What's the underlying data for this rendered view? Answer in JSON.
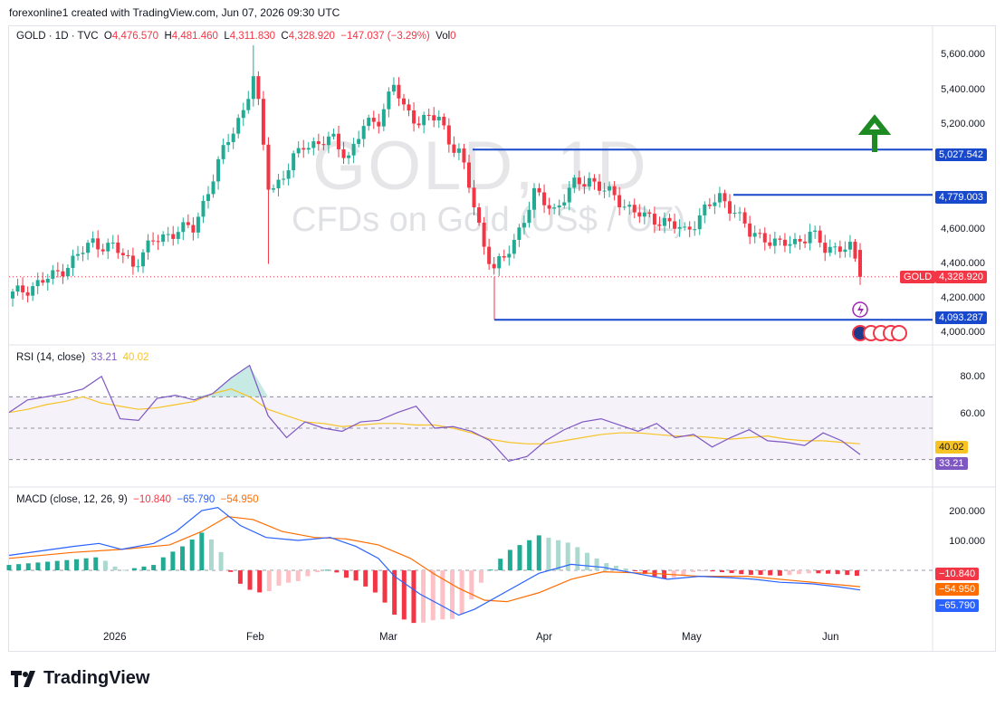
{
  "header": "forexonline1 created with TradingView.com, Jun 07, 2026 09:30 UTC",
  "symbol_line": {
    "symbol": "GOLD · 1D · TVC",
    "o_label": "O",
    "o": "4,476.570",
    "h_label": "H",
    "h": "4,481.460",
    "l_label": "L",
    "l": "4,311.830",
    "c_label": "C",
    "c": "4,328.920",
    "change": "−147.037 (−3.29%)",
    "vol_label": "Vol",
    "vol": "0"
  },
  "watermark": {
    "title": "GOLD, 1D",
    "subtitle": "CFDs on Gold (US$ / OZ)"
  },
  "rsi_label": {
    "name": "RSI (14, close)",
    "rsi": "33.21",
    "ma": "40.02"
  },
  "macd_label": {
    "name": "MACD (close, 12, 26, 9)",
    "hist": "−10.840",
    "macd": "−65.790",
    "signal": "−54.950"
  },
  "price_axis": [
    "5,600.000",
    "5,400.000",
    "5,200.000",
    "4,600.000",
    "4,400.000",
    "4,200.000",
    "4,000.000"
  ],
  "rsi_axis": [
    "80.00",
    "60.00"
  ],
  "macd_axis": [
    "200.000",
    "100.000"
  ],
  "tags": {
    "level1": "5,027.542",
    "level2": "4,779.003",
    "gold_name": "GOLD",
    "gold_price": "4,328.920",
    "level3": "4,093.287",
    "rsi_ma": "40.02",
    "rsi_val": "33.21",
    "macd_hist": "−10.840",
    "macd_signal": "−54.950",
    "macd_val": "−65.790"
  },
  "x_axis": [
    "2026",
    "Feb",
    "Mar",
    "Apr",
    "May",
    "Jun"
  ],
  "footer": "TradingView",
  "colors": {
    "up": "#22ab94",
    "down": "#f23645",
    "level": "#1848cc",
    "rsi": "#7e57c2",
    "rsi_ma": "#f7c325",
    "macd": "#2962ff",
    "signal": "#ff6d00",
    "arrow": "#1e8a23"
  },
  "chart_data": [
    {
      "type": "candlestick",
      "title": "GOLD · 1D · TVC",
      "x_labels": [
        "2026",
        "Feb",
        "Mar",
        "Apr",
        "May",
        "Jun"
      ],
      "y_ticks": [
        4000,
        4200,
        4400,
        4600,
        5200,
        5400,
        5600
      ],
      "ylim": [
        3970,
        5650
      ],
      "horizontal_levels": [
        5027.542,
        4779.003,
        4093.287
      ],
      "last_price": 4328.92,
      "approx_close_path": [
        [
          0,
          4230
        ],
        [
          8,
          4330
        ],
        [
          12,
          4420
        ],
        [
          16,
          4520
        ],
        [
          20,
          4490
        ],
        [
          24,
          4400
        ],
        [
          28,
          4520
        ],
        [
          33,
          4590
        ],
        [
          36,
          4590
        ],
        [
          40,
          4880
        ],
        [
          43,
          5080
        ],
        [
          46,
          5250
        ],
        [
          48,
          5420
        ],
        [
          49,
          5260
        ],
        [
          51,
          4840
        ],
        [
          52,
          4820
        ],
        [
          55,
          4920
        ],
        [
          58,
          5060
        ],
        [
          61,
          5060
        ],
        [
          64,
          5080
        ],
        [
          67,
          4990
        ],
        [
          70,
          5150
        ],
        [
          73,
          5200
        ],
        [
          76,
          5380
        ],
        [
          78,
          5250
        ],
        [
          81,
          5190
        ],
        [
          85,
          5200
        ],
        [
          87,
          5080
        ],
        [
          89,
          5020
        ],
        [
          92,
          4720
        ],
        [
          94,
          4500
        ],
        [
          96,
          4380
        ],
        [
          98,
          4420
        ],
        [
          100,
          4530
        ],
        [
          104,
          4780
        ],
        [
          108,
          4700
        ],
        [
          112,
          4830
        ],
        [
          115,
          4870
        ],
        [
          118,
          4800
        ],
        [
          122,
          4730
        ],
        [
          126,
          4650
        ],
        [
          130,
          4640
        ],
        [
          134,
          4570
        ],
        [
          138,
          4700
        ],
        [
          141,
          4760
        ],
        [
          144,
          4700
        ],
        [
          147,
          4560
        ],
        [
          150,
          4550
        ],
        [
          153,
          4500
        ],
        [
          156,
          4520
        ],
        [
          159,
          4570
        ],
        [
          162,
          4480
        ],
        [
          165,
          4500
        ],
        [
          167,
          4480
        ],
        [
          169,
          4328.92
        ]
      ]
    },
    {
      "type": "line",
      "title": "RSI (14, close)",
      "y_ticks": [
        60,
        80
      ],
      "bands": [
        30,
        50,
        70
      ],
      "series": [
        {
          "name": "RSI",
          "last": 33.21,
          "values": [
            60,
            68,
            70,
            72,
            75,
            83,
            56,
            55,
            69,
            71,
            68,
            72,
            82,
            90,
            58,
            44,
            54,
            50,
            48,
            54,
            55,
            60,
            64,
            50,
            51,
            48,
            42,
            29,
            32,
            42,
            49,
            54,
            56,
            52,
            48,
            53,
            44,
            46,
            38,
            44,
            49,
            42,
            41,
            39,
            47,
            42,
            33.21
          ]
        },
        {
          "name": "MA",
          "last": 40.02,
          "values": [
            60,
            62,
            65,
            67,
            70,
            66,
            64,
            62,
            63,
            65,
            67,
            72,
            75,
            70,
            62,
            58,
            54,
            53,
            51,
            52,
            53,
            53,
            52,
            52,
            50,
            47,
            43,
            41,
            40,
            40,
            42,
            44,
            46,
            47,
            47,
            46,
            45,
            45,
            44,
            43,
            44,
            45,
            43,
            42,
            42,
            41,
            40.02
          ]
        }
      ]
    },
    {
      "type": "bar",
      "title": "MACD (close, 12, 26, 9)",
      "y_ticks": [
        100,
        200
      ],
      "series": [
        {
          "name": "Histogram",
          "last": -10.84
        },
        {
          "name": "MACD",
          "last": -65.79
        },
        {
          "name": "Signal",
          "last": -54.95
        }
      ]
    }
  ]
}
